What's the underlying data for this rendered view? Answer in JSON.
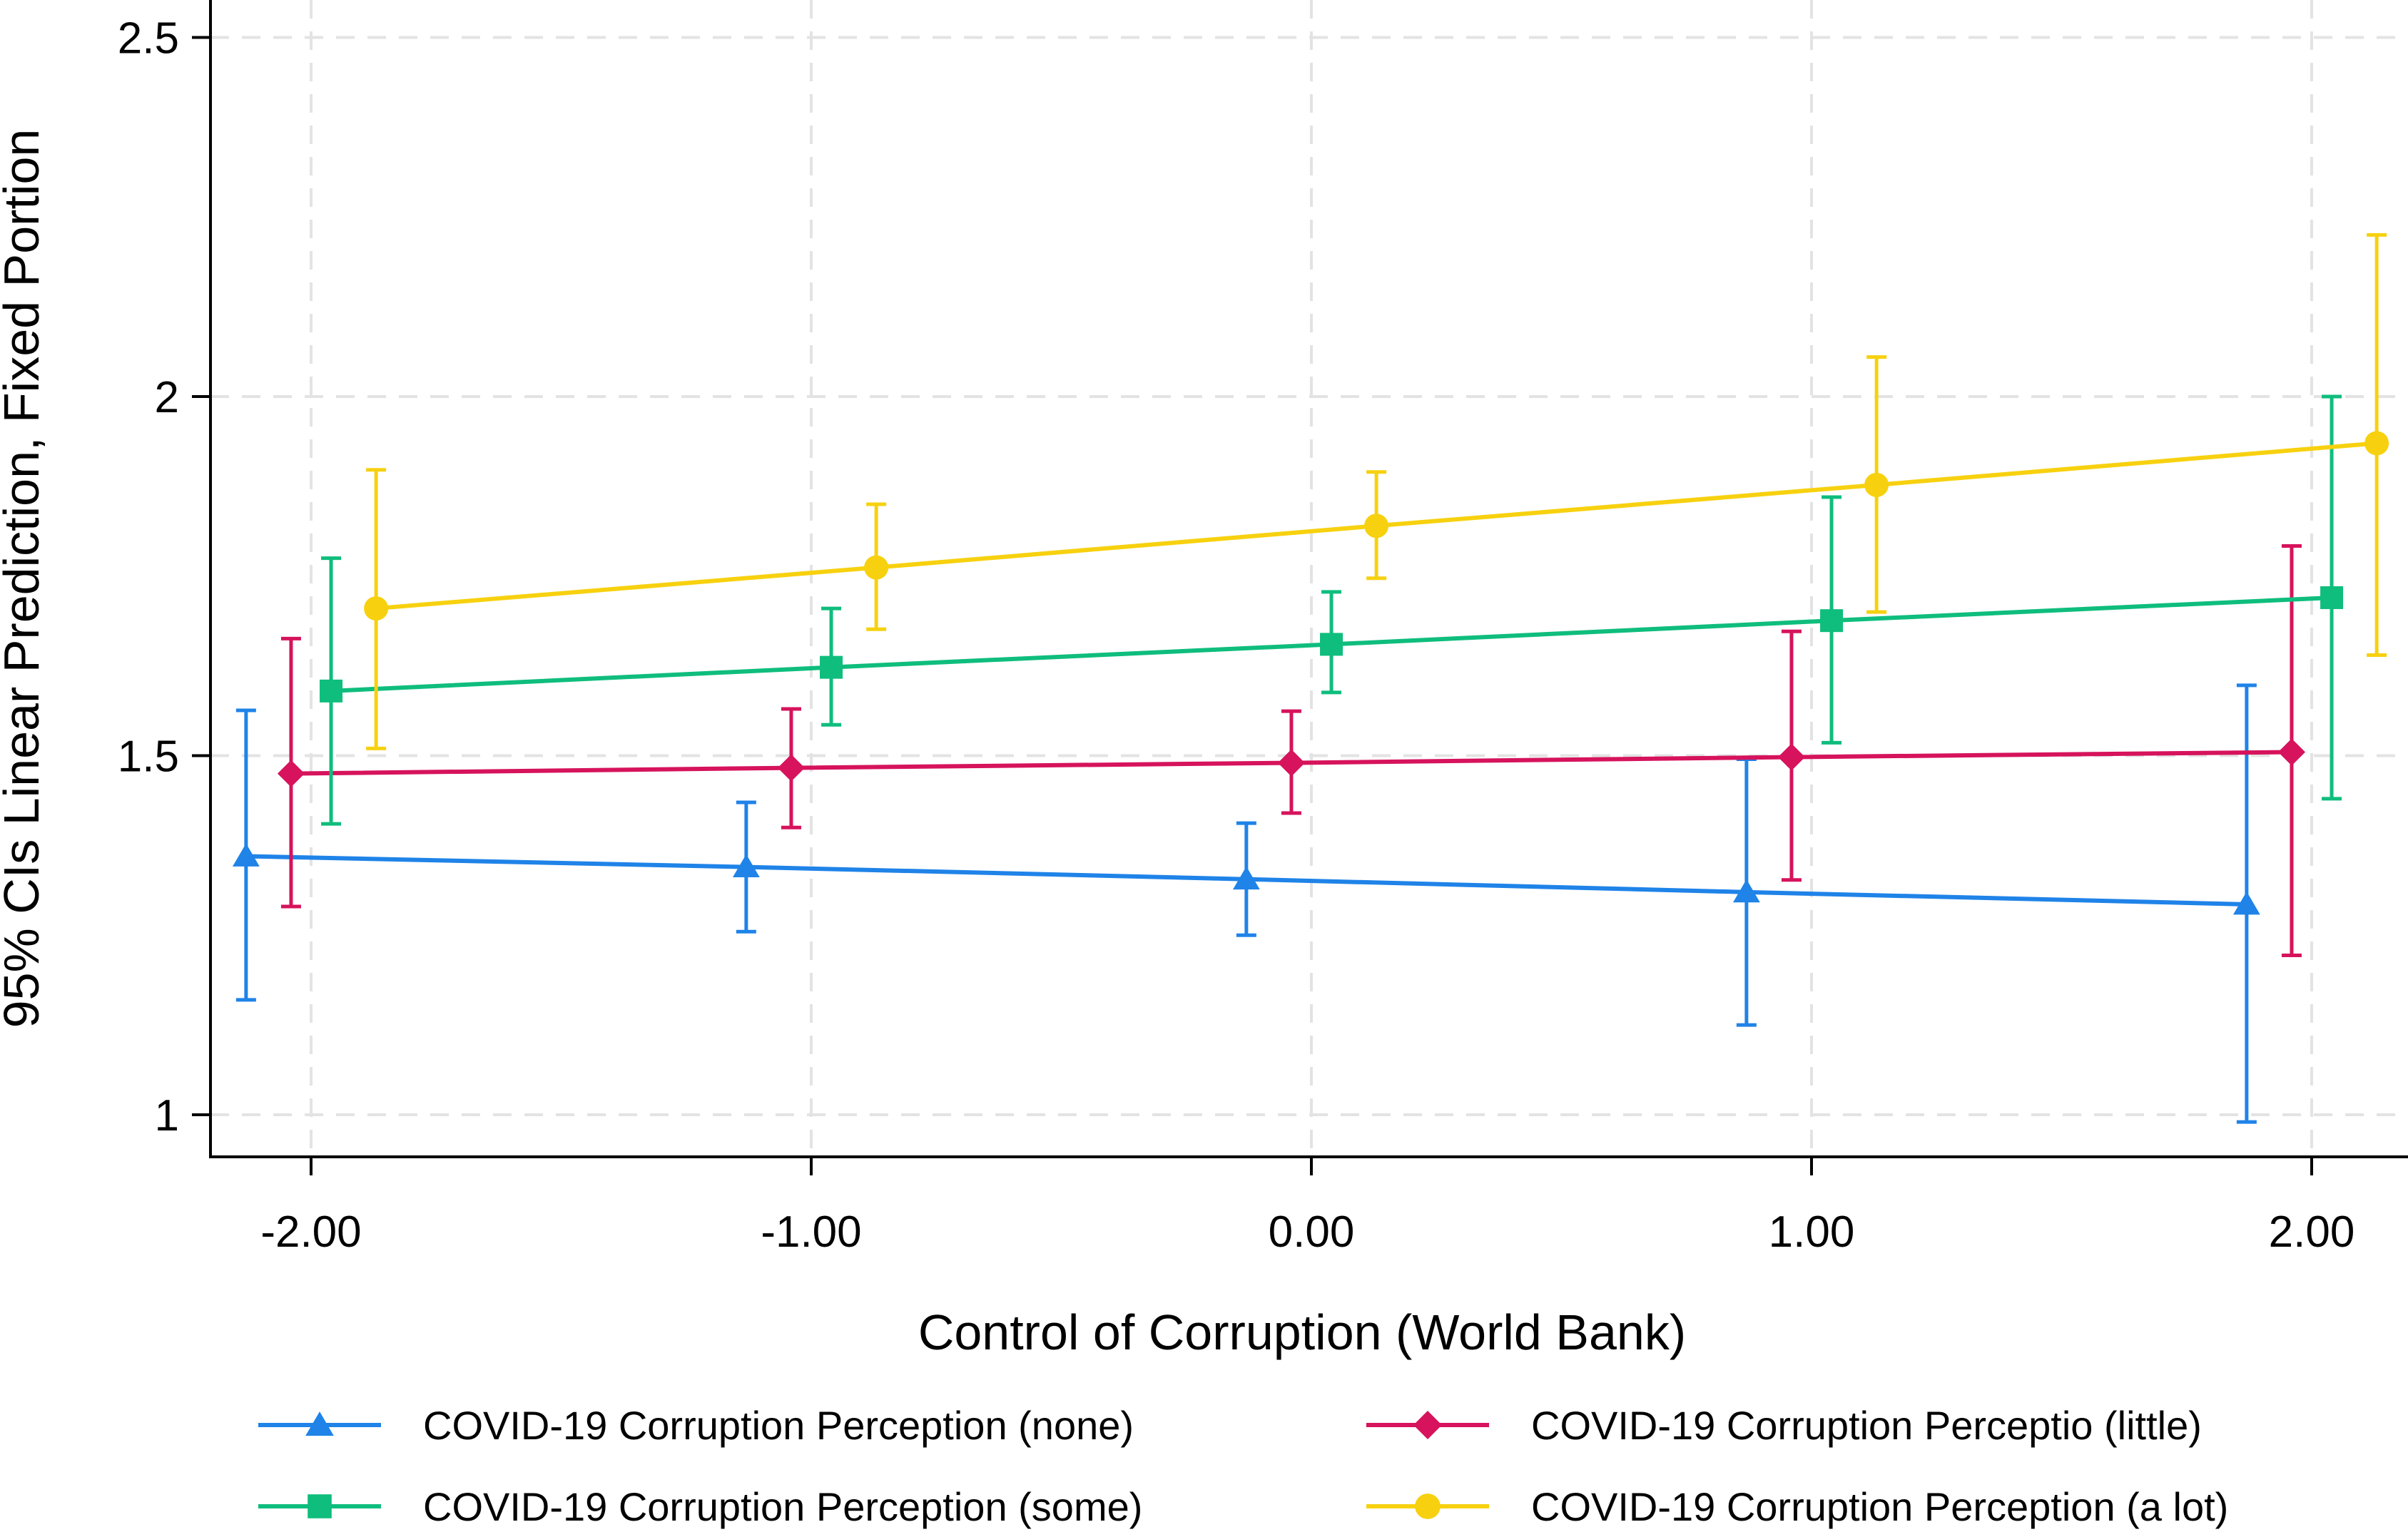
{
  "chart_data": {
    "type": "line",
    "xlabel": "Control of Corruption (World Bank)",
    "ylabel": "95% CIs Linear Prediction, Fixed Portion",
    "x_ticks": [
      "-2.00",
      "-1.00",
      "0.00",
      "1.00",
      "2.00"
    ],
    "y_ticks": [
      "1",
      "1.5",
      "2",
      "2.5"
    ],
    "xlim": [
      -2.2,
      2.2
    ],
    "ylim": [
      0.95,
      2.55
    ],
    "grid": true,
    "legend_position": "bottom",
    "series": [
      {
        "name": "COVID-19 Corruption Perception (none)",
        "color": "#1f83e8",
        "marker": "triangle",
        "x": [
          -2.13,
          -1.13,
          -0.13,
          0.87,
          1.87
        ],
        "y": [
          1.36,
          1.345,
          1.328,
          1.31,
          1.293
        ],
        "ci_low": [
          1.16,
          1.255,
          1.25,
          1.125,
          0.99
        ],
        "ci_high": [
          1.563,
          1.435,
          1.406,
          1.495,
          1.598
        ]
      },
      {
        "name": "COVID-19 Corruption Perceptio (little)",
        "color": "#d6135c",
        "marker": "diamond",
        "x": [
          -2.04,
          -1.04,
          -0.04,
          0.96,
          1.96
        ],
        "y": [
          1.475,
          1.483,
          1.49,
          1.498,
          1.505
        ],
        "ci_low": [
          1.29,
          1.4,
          1.42,
          1.327,
          1.222
        ],
        "ci_high": [
          1.663,
          1.565,
          1.562,
          1.673,
          1.792
        ]
      },
      {
        "name": "COVID-19 Corruption Perception (some)",
        "color": "#0fbd7d",
        "marker": "square",
        "x": [
          -1.96,
          -0.96,
          0.04,
          1.04,
          2.04
        ],
        "y": [
          1.59,
          1.623,
          1.655,
          1.688,
          1.72
        ],
        "ci_low": [
          1.405,
          1.543,
          1.588,
          1.518,
          1.44
        ],
        "ci_high": [
          1.775,
          1.705,
          1.728,
          1.86,
          2.0
        ]
      },
      {
        "name": "COVID-19 Corruption Perception (a lot)",
        "color": "#f7d10f",
        "marker": "circle",
        "x": [
          -1.87,
          -0.87,
          0.13,
          1.13,
          2.13
        ],
        "y": [
          1.705,
          1.762,
          1.82,
          1.877,
          1.935
        ],
        "ci_low": [
          1.51,
          1.676,
          1.747,
          1.7,
          1.64
        ],
        "ci_high": [
          1.898,
          1.85,
          1.895,
          2.055,
          2.225
        ]
      }
    ]
  }
}
